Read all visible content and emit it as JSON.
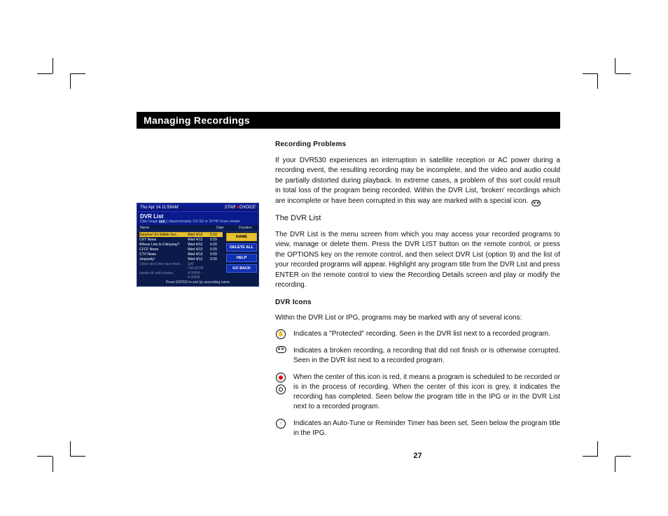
{
  "page": {
    "title": "Managing Recordings",
    "section1_heading": "Recording Problems",
    "section1_body": "If your DVR530 experiences an interruption in satellite reception or AC power during a recording event, the resulting recording may be incomplete, and the video and audio could be partially distorted during playback. In extreme cases, a problem of this sort could result in total loss of the program being recorded. Within the DVR List, 'broken' recordings which are incomplete or have been corrupted in this way are marked with a special icon.",
    "section2_heading": "The DVR List",
    "section2_body": "The DVR List is the menu screen from which you may access your recorded programs to view, manage or delete them. Press the DVR LIST button on the remote control, or press the OPTIONS key on the remote control, and then select DVR List (option 9) and the list of your recorded programs will appear. Highlight any program title from the DVR List and press ENTER on the remote control to view the Recording Details screen and play or modify the recording.",
    "section3_heading": "DVR Icons",
    "section3_intro": "Within the DVR List or IPG, programs may be marked with any of several icons:",
    "icons": [
      {
        "desc": "Indicates a \"Protected\" recording. Seen in the DVR list next to a recorded program."
      },
      {
        "desc": "Indicates a broken recording, a recording that did not finish or is otherwise corrupted. Seen in the DVR list next to a recorded program."
      },
      {
        "desc": "When the center of this icon is red, it means a program is scheduled to be recorded or is in the process of recording. When the center of this icon is grey, it indicates the recording has completed. Seen below the program title in the IPG or in the DVR List next to a recorded program."
      },
      {
        "desc": "Indicates an Auto-Tune or Reminder Timer has been set. Seen below the program title in the IPG."
      }
    ],
    "page_number": "27"
  },
  "dvr": {
    "datetime": "Thu Apr 14 11:59AM",
    "logo_text": "STAR★CHOICE",
    "title": "DVR List",
    "usage_label": "Disk Usage",
    "usage_sub": "Approximately 110 SD or 20 HD hours remain",
    "columns": [
      "Name",
      "Date",
      "Duration"
    ],
    "rows": [
      {
        "name": "Surprise! It's Edible Incr...",
        "date": "Wed 4/13",
        "dur": "0:10",
        "hl": true
      },
      {
        "name": "CKY News",
        "date": "Wed 4/13",
        "dur": "0:29"
      },
      {
        "name": "Whose Line Is It Anyway?",
        "date": "Wed 4/13",
        "dur": "0:29"
      },
      {
        "name": "CFCF News",
        "date": "Wed 4/13",
        "dur": "0:29"
      },
      {
        "name": "CTV News",
        "date": "Wed 4/13",
        "dur": "0:29"
      },
      {
        "name": "Jeopardy!",
        "date": "Wed 4/13",
        "dur": "0:29"
      },
      {
        "name": "Chloe and Dino have their...",
        "date": "SAT CBCE/DN",
        "dur": "",
        "grey": true
      },
      {
        "name": "hands full with lobster.",
        "date": "4:00PM – 4:30PM",
        "dur": "",
        "grey": true
      }
    ],
    "buttons": [
      "NAME",
      "DELETE ALL",
      "HELP",
      "GO BACK"
    ],
    "footer": "Press ENTER to sort by ascending name"
  }
}
